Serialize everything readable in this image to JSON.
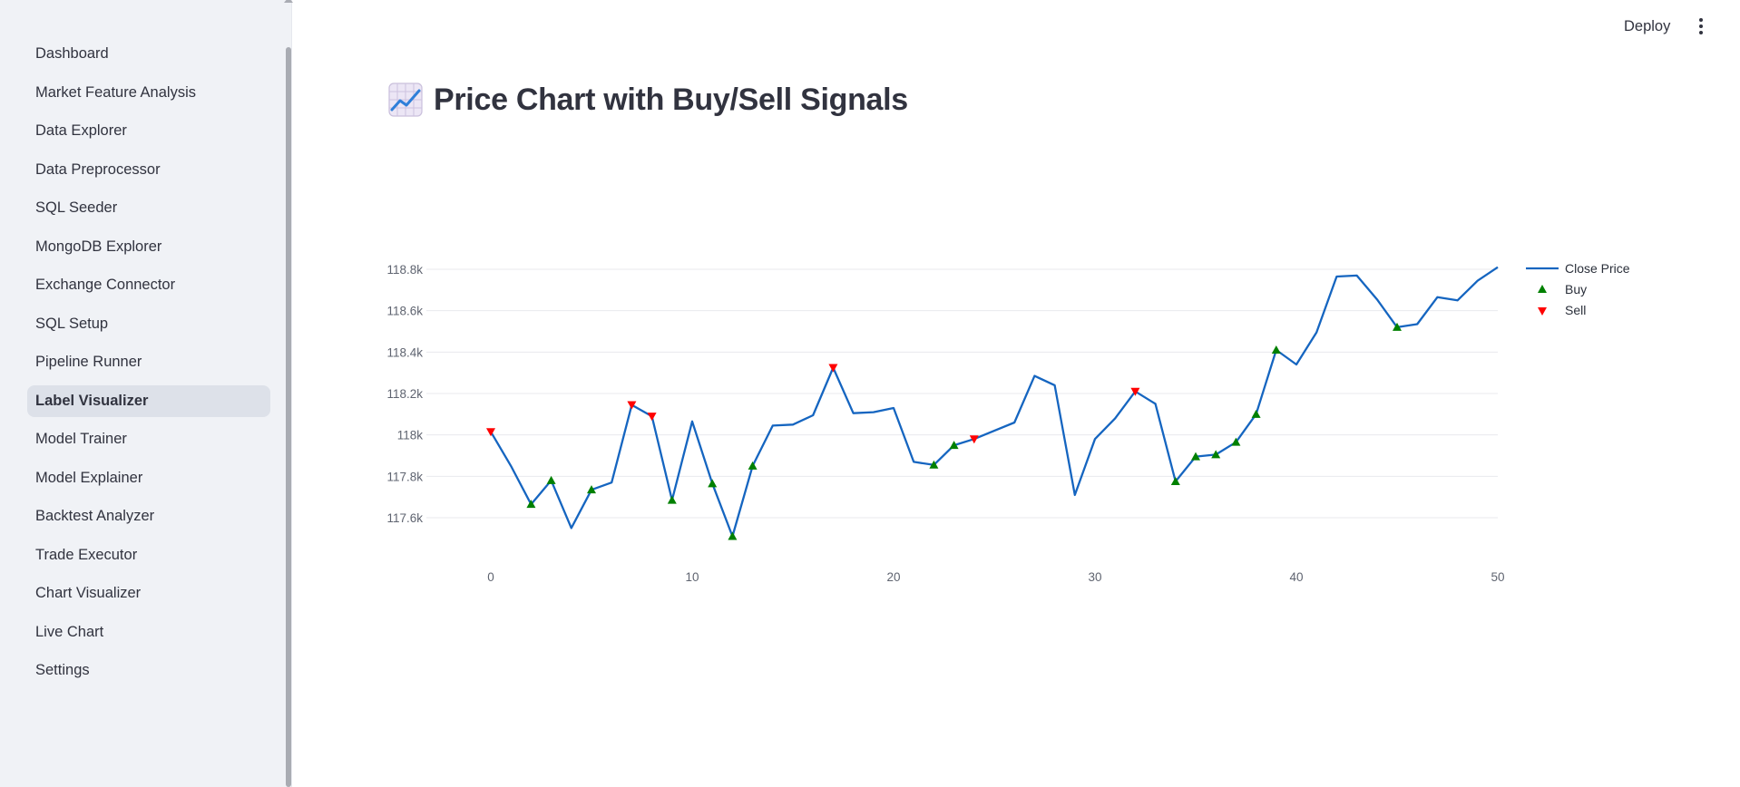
{
  "sidebar": {
    "items": [
      {
        "label": "Dashboard",
        "active": false
      },
      {
        "label": "Market Feature Analysis",
        "active": false
      },
      {
        "label": "Data Explorer",
        "active": false
      },
      {
        "label": "Data Preprocessor",
        "active": false
      },
      {
        "label": "SQL Seeder",
        "active": false
      },
      {
        "label": "MongoDB Explorer",
        "active": false
      },
      {
        "label": "Exchange Connector",
        "active": false
      },
      {
        "label": "SQL Setup",
        "active": false
      },
      {
        "label": "Pipeline Runner",
        "active": false
      },
      {
        "label": "Label Visualizer",
        "active": true
      },
      {
        "label": "Model Trainer",
        "active": false
      },
      {
        "label": "Model Explainer",
        "active": false
      },
      {
        "label": "Backtest Analyzer",
        "active": false
      },
      {
        "label": "Trade Executor",
        "active": false
      },
      {
        "label": "Chart Visualizer",
        "active": false
      },
      {
        "label": "Live Chart",
        "active": false
      },
      {
        "label": "Settings",
        "active": false
      }
    ]
  },
  "header": {
    "deploy_label": "Deploy",
    "menu_icon": "more-vertical-icon"
  },
  "main": {
    "title": "Price Chart with Buy/Sell Signals",
    "title_icon": "chart-increasing-icon"
  },
  "colors": {
    "line": "#1565c0",
    "buy": "#008000",
    "sell": "#ff0000",
    "grid": "#e8eaee",
    "tick_text": "#5f6470"
  },
  "chart_data": {
    "type": "line",
    "x": [
      0,
      1,
      2,
      3,
      4,
      5,
      6,
      7,
      8,
      9,
      10,
      11,
      12,
      13,
      14,
      15,
      16,
      17,
      18,
      19,
      20,
      21,
      22,
      23,
      24,
      25,
      26,
      27,
      28,
      29,
      30,
      31,
      32,
      33,
      34,
      35,
      36,
      37,
      38,
      39,
      40,
      41,
      42,
      43,
      44,
      45,
      46,
      47,
      48,
      49,
      50
    ],
    "series": [
      {
        "name": "Close Price",
        "values": [
          118015,
          117850,
          117665,
          117780,
          117550,
          117735,
          117770,
          118145,
          118090,
          117685,
          118065,
          117765,
          117510,
          117850,
          118045,
          118050,
          118095,
          118325,
          118105,
          118110,
          118130,
          117870,
          117855,
          117950,
          117980,
          118020,
          118060,
          118285,
          118240,
          117710,
          117980,
          118080,
          118210,
          118150,
          117775,
          117895,
          117905,
          117965,
          118100,
          118410,
          118340,
          118495,
          118765,
          118770,
          118655,
          118520,
          118535,
          118665,
          118650,
          118745,
          118810
        ]
      }
    ],
    "buy": {
      "name": "Buy",
      "x": [
        2,
        3,
        5,
        9,
        11,
        12,
        13,
        22,
        23,
        34,
        35,
        36,
        37,
        38,
        39,
        45
      ],
      "y": [
        117665,
        117780,
        117735,
        117685,
        117765,
        117510,
        117850,
        117855,
        117950,
        117775,
        117895,
        117905,
        117965,
        118100,
        118410,
        118520
      ]
    },
    "sell": {
      "name": "Sell",
      "x": [
        0,
        7,
        8,
        17,
        24,
        32
      ],
      "y": [
        118015,
        118145,
        118090,
        118325,
        117980,
        118210
      ]
    },
    "legend": [
      "Close Price",
      "Buy",
      "Sell"
    ],
    "legend_position": "top-right",
    "x_ticks": [
      0,
      10,
      20,
      30,
      40,
      50
    ],
    "x_tick_labels": [
      "0",
      "10",
      "20",
      "30",
      "40",
      "50"
    ],
    "y_ticks": [
      117600,
      117800,
      118000,
      118200,
      118400,
      118600,
      118800
    ],
    "y_tick_labels": [
      "117.6k",
      "117.8k",
      "118k",
      "118.2k",
      "118.4k",
      "118.6k",
      "118.8k"
    ],
    "xlim": [
      0,
      50
    ],
    "ylim": [
      117600,
      118800
    ],
    "grid": true
  }
}
